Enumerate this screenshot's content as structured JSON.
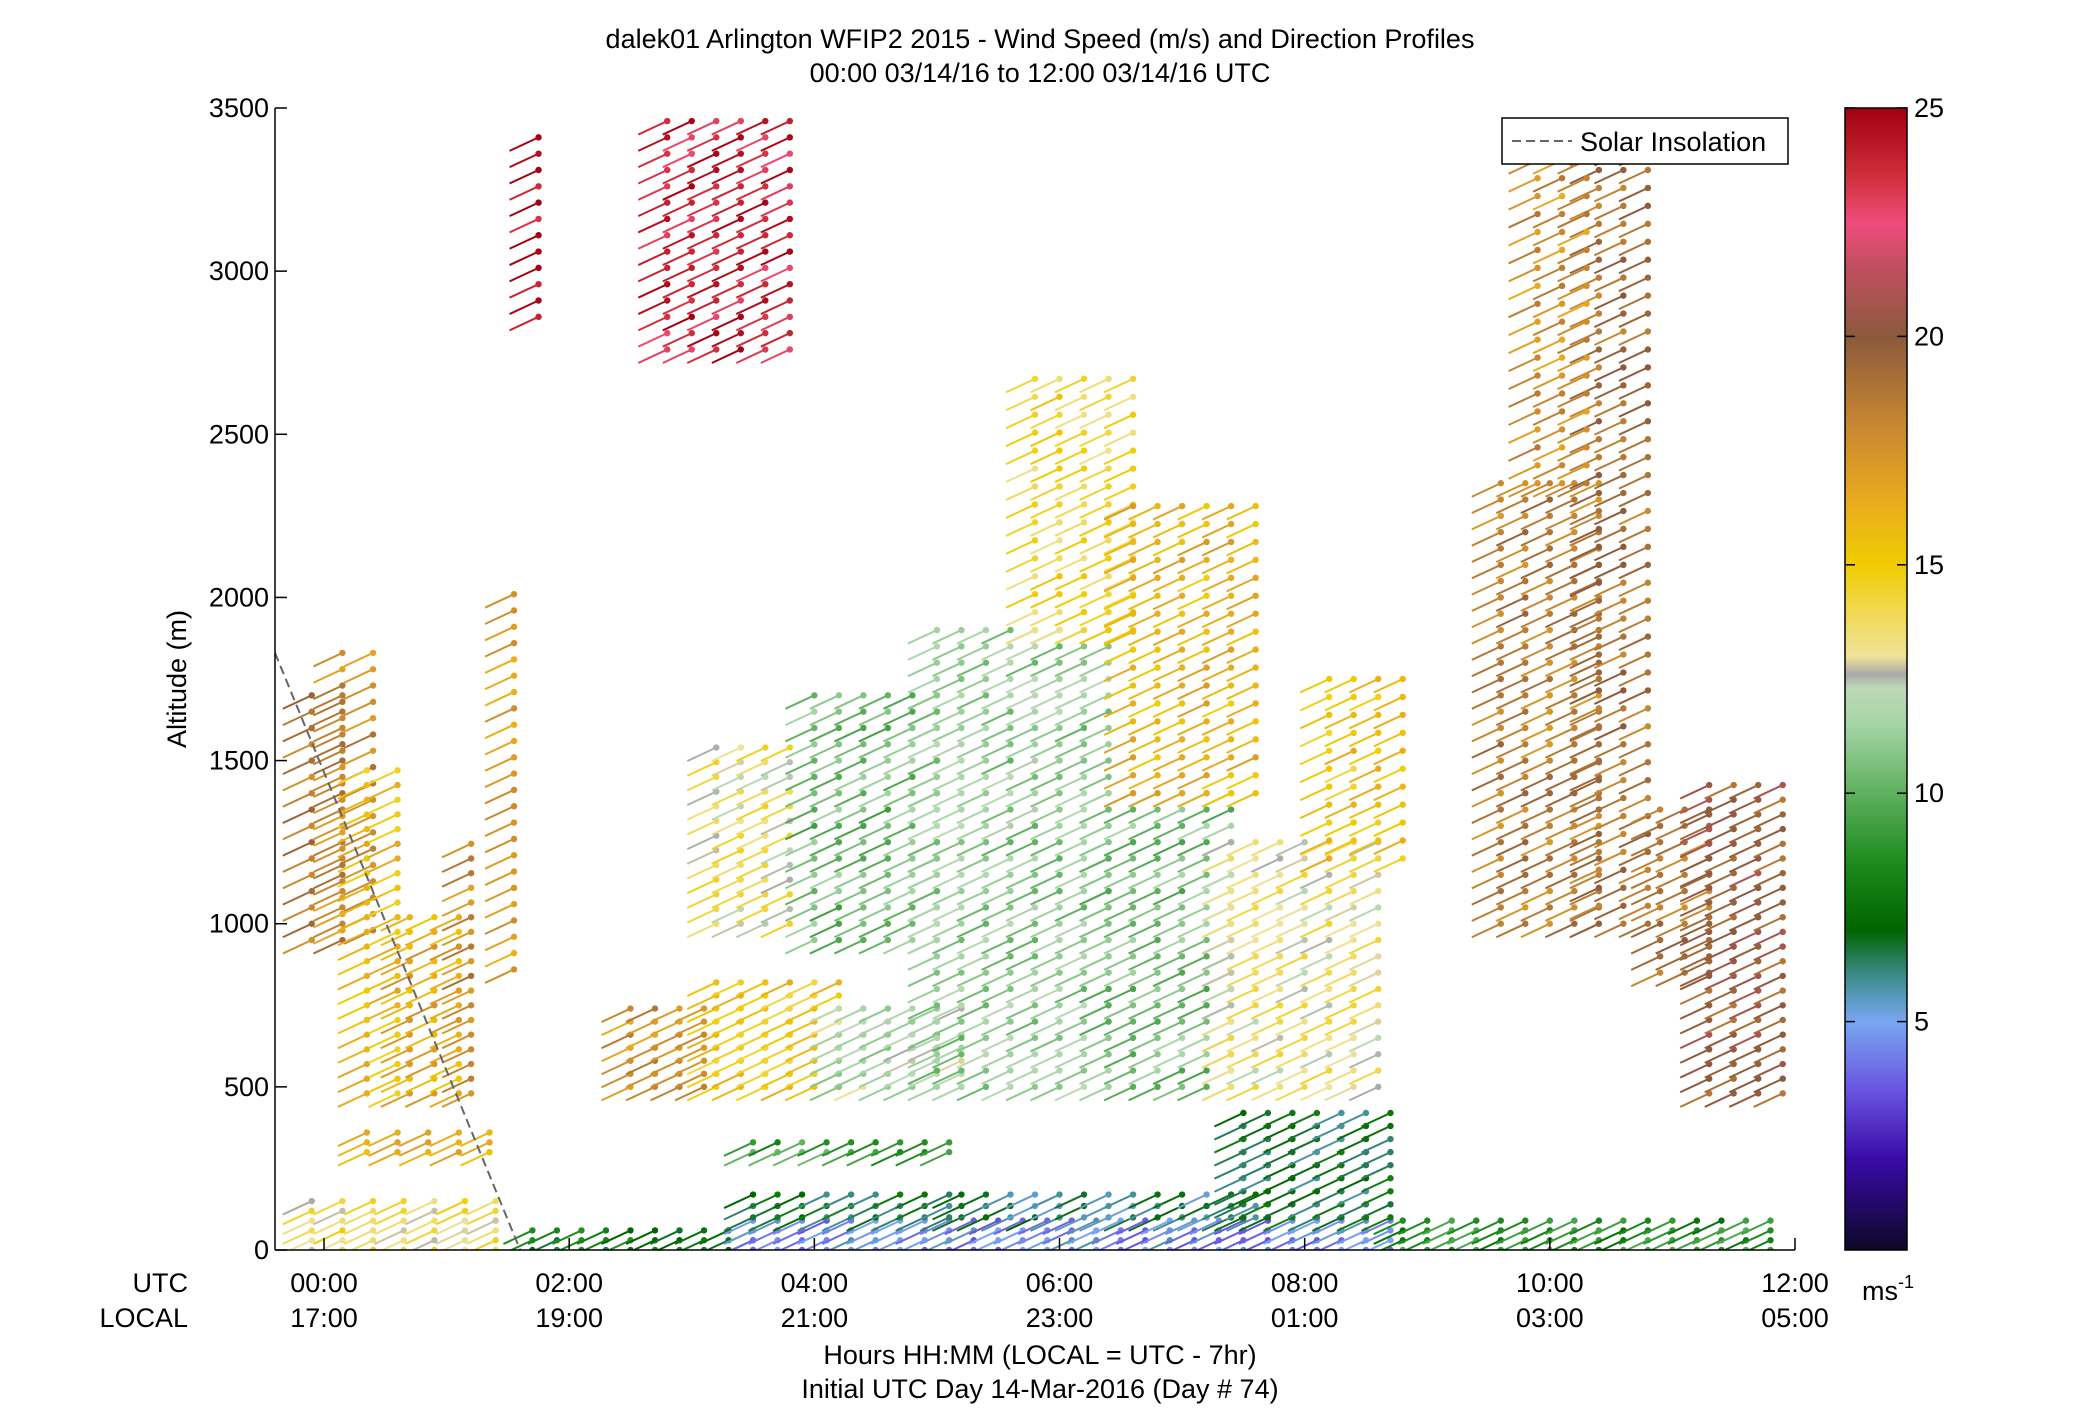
{
  "chart_data": {
    "type": "scatter",
    "title": "dalek01 Arlington WFIP2 2015 - Wind Speed (m/s) and Direction Profiles",
    "subtitle": "00:00 03/14/16 to 12:00 03/14/16  UTC",
    "ylabel": "Altitude (m)",
    "xlabel": "Hours HH:MM  (LOCAL = UTC - 7hr)",
    "xlabel2": "Initial UTC Day 14-Mar-2016 (Day # 74)",
    "xlim_hours": [
      -0.4,
      12.0
    ],
    "ylim": [
      0,
      3500
    ],
    "yticks": [
      0,
      500,
      1000,
      1500,
      2000,
      2500,
      3000,
      3500
    ],
    "xtick_hours": [
      0,
      2,
      4,
      6,
      8,
      10,
      12
    ],
    "xticks_utc": [
      "00:00",
      "02:00",
      "04:00",
      "06:00",
      "08:00",
      "10:00",
      "12:00"
    ],
    "xticks_local": [
      "17:00",
      "19:00",
      "21:00",
      "23:00",
      "01:00",
      "03:00",
      "05:00"
    ],
    "row_label_utc": "UTC",
    "row_label_local": "LOCAL",
    "legend": {
      "entry": "Solar Insolation",
      "position": "top-right",
      "style": "dashed",
      "color": "#666666"
    },
    "solar_insolation_line": {
      "x_hours": [
        -0.4,
        1.6
      ],
      "y": [
        1830,
        0
      ]
    },
    "colorbar": {
      "label": "ms",
      "label_exponent": "-1",
      "min": 0,
      "max": 25,
      "ticks": [
        5,
        10,
        15,
        20,
        25
      ],
      "stops": [
        {
          "v": 0,
          "c": "#0d0926"
        },
        {
          "v": 2,
          "c": "#3a0aa8"
        },
        {
          "v": 3.5,
          "c": "#6a55e0"
        },
        {
          "v": 5,
          "c": "#79a6f2"
        },
        {
          "v": 6,
          "c": "#3f8c8c"
        },
        {
          "v": 7,
          "c": "#006400"
        },
        {
          "v": 8.5,
          "c": "#1e8c1e"
        },
        {
          "v": 10,
          "c": "#5fb05f"
        },
        {
          "v": 11.5,
          "c": "#a5d4a5"
        },
        {
          "v": 12.3,
          "c": "#bcd9b5"
        },
        {
          "v": 12.6,
          "c": "#a9a9a9"
        },
        {
          "v": 13,
          "c": "#efe39a"
        },
        {
          "v": 14,
          "c": "#f1d84f"
        },
        {
          "v": 15,
          "c": "#f0cc00"
        },
        {
          "v": 16.5,
          "c": "#e8a920"
        },
        {
          "v": 18,
          "c": "#c98830"
        },
        {
          "v": 20,
          "c": "#8b5a3c"
        },
        {
          "v": 21.5,
          "c": "#c05060"
        },
        {
          "v": 22.5,
          "c": "#f04c7c"
        },
        {
          "v": 23.5,
          "c": "#d0303c"
        },
        {
          "v": 25,
          "c": "#a00010"
        }
      ]
    },
    "wind_profiles": {
      "barb_angle_deg": 205,
      "barb_length_px": 32,
      "note_units": "segments: start_h/end_h in UTC hours, dt step hours, alt m, dz m, speed m/s",
      "segments": [
        {
          "start_h": -0.1,
          "end_h": 1.6,
          "dt": 0.25,
          "alt": [
            0,
            150
          ],
          "dz": 30,
          "speed": 13.8
        },
        {
          "start_h": -0.1,
          "end_h": 0.15,
          "dt": 0.25,
          "alt": [
            950,
            1720
          ],
          "dz": 50,
          "speed": 18.6
        },
        {
          "start_h": 0.15,
          "end_h": 0.6,
          "dt": 0.25,
          "alt": [
            980,
            1850
          ],
          "dz": 50,
          "speed": 17.8
        },
        {
          "start_h": 0.35,
          "end_h": 0.65,
          "dt": 0.25,
          "alt": [
            480,
            1480
          ],
          "dz": 45,
          "speed": 15.6
        },
        {
          "start_h": 0.7,
          "end_h": 1.1,
          "dt": 0.2,
          "alt": [
            480,
            1060
          ],
          "dz": 45,
          "speed": 16.4
        },
        {
          "start_h": 0.35,
          "end_h": 1.4,
          "dt": 0.25,
          "alt": [
            300,
            360
          ],
          "dz": 30,
          "speed": 16.2
        },
        {
          "start_h": 1.2,
          "end_h": 1.3,
          "dt": 0.25,
          "alt": [
            480,
            1260
          ],
          "dz": 45,
          "speed": 18.0
        },
        {
          "start_h": 1.55,
          "end_h": 1.65,
          "dt": 0.25,
          "alt": [
            860,
            2040
          ],
          "dz": 50,
          "speed": 17.0
        },
        {
          "start_h": 1.75,
          "end_h": 1.9,
          "dt": 0.25,
          "alt": [
            2860,
            3440
          ],
          "dz": 50,
          "speed": 24.5
        },
        {
          "start_h": 2.8,
          "end_h": 3.8,
          "dt": 0.2,
          "alt": [
            2760,
            3460
          ],
          "dz": 50,
          "speed": 23.8
        },
        {
          "start_h": 1.7,
          "end_h": 3.5,
          "dt": 0.2,
          "alt": [
            0,
            70
          ],
          "dz": 30,
          "speed": 7.6
        },
        {
          "start_h": 3.5,
          "end_h": 8.8,
          "dt": 0.2,
          "alt": [
            0,
            90
          ],
          "dz": 30,
          "speed": 4.6
        },
        {
          "start_h": 3.5,
          "end_h": 5.2,
          "dt": 0.2,
          "alt": [
            100,
            200
          ],
          "dz": 35,
          "speed": 7.0
        },
        {
          "start_h": 5.2,
          "end_h": 7.6,
          "dt": 0.2,
          "alt": [
            100,
            200
          ],
          "dz": 35,
          "speed": 6.4
        },
        {
          "start_h": 8.8,
          "end_h": 11.9,
          "dt": 0.2,
          "alt": [
            0,
            90
          ],
          "dz": 30,
          "speed": 8.6
        },
        {
          "start_h": 2.5,
          "end_h": 3.2,
          "dt": 0.2,
          "alt": [
            500,
            740
          ],
          "dz": 40,
          "speed": 17.6
        },
        {
          "start_h": 3.2,
          "end_h": 4.2,
          "dt": 0.2,
          "alt": [
            500,
            820
          ],
          "dz": 40,
          "speed": 15.2
        },
        {
          "start_h": 4.2,
          "end_h": 5.2,
          "dt": 0.2,
          "alt": [
            500,
            760
          ],
          "dz": 40,
          "speed": 11.8
        },
        {
          "start_h": 3.5,
          "end_h": 5.2,
          "dt": 0.2,
          "alt": [
            300,
            340
          ],
          "dz": 30,
          "speed": 9.2
        },
        {
          "start_h": 3.2,
          "end_h": 3.8,
          "dt": 0.2,
          "alt": [
            1000,
            1540
          ],
          "dz": 45,
          "speed": 13.4
        },
        {
          "start_h": 4.0,
          "end_h": 5.0,
          "dt": 0.2,
          "alt": [
            950,
            1740
          ],
          "dz": 50,
          "speed": 10.4
        },
        {
          "start_h": 5.0,
          "end_h": 6.4,
          "dt": 0.2,
          "alt": [
            500,
            1900
          ],
          "dz": 50,
          "speed": 11.2
        },
        {
          "start_h": 6.4,
          "end_h": 7.4,
          "dt": 0.2,
          "alt": [
            500,
            1400
          ],
          "dz": 50,
          "speed": 10.6
        },
        {
          "start_h": 5.8,
          "end_h": 6.6,
          "dt": 0.2,
          "alt": [
            1900,
            2700
          ],
          "dz": 55,
          "speed": 14.4
        },
        {
          "start_h": 6.6,
          "end_h": 7.6,
          "dt": 0.2,
          "alt": [
            1400,
            2300
          ],
          "dz": 55,
          "speed": 16.0
        },
        {
          "start_h": 7.4,
          "end_h": 8.6,
          "dt": 0.2,
          "alt": [
            500,
            1250
          ],
          "dz": 50,
          "speed": 13.2
        },
        {
          "start_h": 8.2,
          "end_h": 8.8,
          "dt": 0.2,
          "alt": [
            1200,
            1800
          ],
          "dz": 55,
          "speed": 15.4
        },
        {
          "start_h": 7.5,
          "end_h": 8.8,
          "dt": 0.2,
          "alt": [
            100,
            420
          ],
          "dz": 40,
          "speed": 6.8
        },
        {
          "start_h": 9.6,
          "end_h": 10.4,
          "dt": 0.2,
          "alt": [
            1000,
            2350
          ],
          "dz": 50,
          "speed": 18.4
        },
        {
          "start_h": 10.4,
          "end_h": 10.9,
          "dt": 0.2,
          "alt": [
            1000,
            3460
          ],
          "dz": 55,
          "speed": 19.0
        },
        {
          "start_h": 9.9,
          "end_h": 10.4,
          "dt": 0.2,
          "alt": [
            2350,
            3460
          ],
          "dz": 55,
          "speed": 17.6
        },
        {
          "start_h": 10.9,
          "end_h": 11.4,
          "dt": 0.2,
          "alt": [
            850,
            1380
          ],
          "dz": 50,
          "speed": 18.8
        },
        {
          "start_h": 11.3,
          "end_h": 11.9,
          "dt": 0.2,
          "alt": [
            480,
            1440
          ],
          "dz": 45,
          "speed": 19.8
        }
      ]
    }
  }
}
